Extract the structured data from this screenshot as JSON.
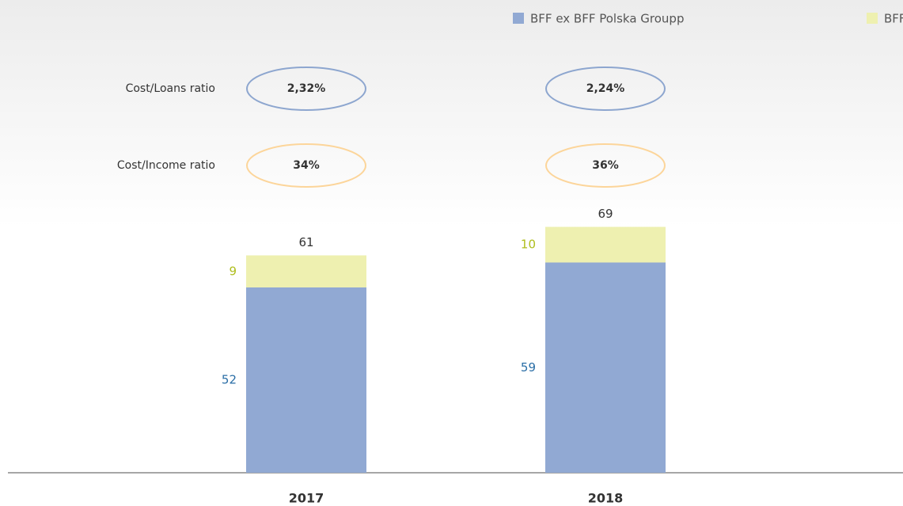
{
  "chart_data": {
    "type": "stacked-bar",
    "categories": [
      "2017",
      "2018"
    ],
    "series": [
      {
        "name": "BFF ex BFF Polska Groupp",
        "color": "#91a9d3",
        "label_color": "#2a6ea6",
        "values": [
          52,
          59
        ]
      },
      {
        "name": "BFF Polska Group",
        "color": "#eef0b0",
        "label_color": "#aebd1c",
        "values": [
          9,
          10
        ]
      }
    ],
    "totals": [
      61,
      69
    ],
    "ratios": [
      {
        "name": "Cost/Loans ratio",
        "color": "#8da6cf",
        "values": [
          2.32,
          2.24
        ],
        "value_labels": [
          "2,32%",
          "2,24%"
        ]
      },
      {
        "name": "Cost/Income ratio",
        "color": "#fcd59a",
        "values": [
          34,
          36
        ],
        "value_labels": [
          "34%",
          "36%"
        ]
      }
    ]
  }
}
